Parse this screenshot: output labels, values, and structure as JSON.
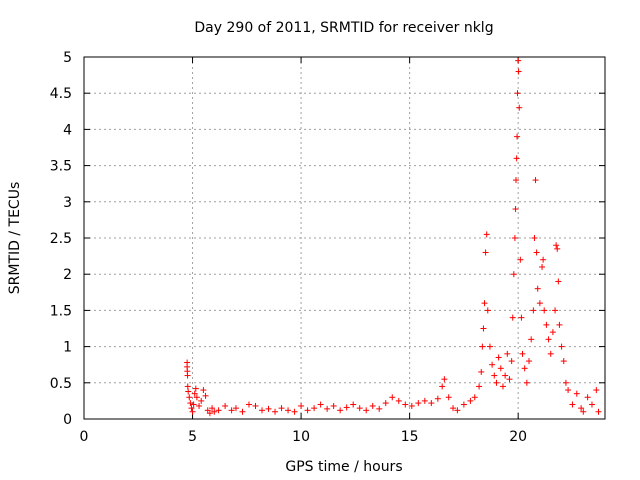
{
  "chart_data": {
    "type": "scatter",
    "title": "Day 290 of 2011, SRMTID for receiver nklg",
    "xlabel": "GPS time / hours",
    "ylabel": "SRMTID / TECUs",
    "xlim": [
      0,
      24
    ],
    "ylim": [
      0,
      5
    ],
    "x_ticks": [
      0,
      5,
      10,
      15,
      20
    ],
    "x_tick_labels": [
      "0",
      "5",
      "10",
      "15",
      "20"
    ],
    "y_ticks": [
      0,
      0.5,
      1,
      1.5,
      2,
      2.5,
      3,
      3.5,
      4,
      4.5,
      5
    ],
    "y_tick_labels": [
      "0",
      "0.5",
      "1",
      "1.5",
      "2",
      "2.5",
      "3",
      "3.5",
      "4",
      "4.5",
      "5"
    ],
    "grid": true,
    "marker": "+",
    "color": "#ff0000",
    "series": [
      {
        "name": "SRMTID",
        "points": [
          [
            4.75,
            0.78
          ],
          [
            4.75,
            0.72
          ],
          [
            4.76,
            0.66
          ],
          [
            4.77,
            0.6
          ],
          [
            4.78,
            0.45
          ],
          [
            4.8,
            0.38
          ],
          [
            4.85,
            0.3
          ],
          [
            4.9,
            0.22
          ],
          [
            4.95,
            0.15
          ],
          [
            5.0,
            0.1
          ],
          [
            5.05,
            0.2
          ],
          [
            5.1,
            0.35
          ],
          [
            5.15,
            0.42
          ],
          [
            5.2,
            0.3
          ],
          [
            5.3,
            0.18
          ],
          [
            5.4,
            0.25
          ],
          [
            5.5,
            0.4
          ],
          [
            5.6,
            0.32
          ],
          [
            5.7,
            0.12
          ],
          [
            5.8,
            0.08
          ],
          [
            5.9,
            0.15
          ],
          [
            6.0,
            0.1
          ],
          [
            6.2,
            0.12
          ],
          [
            6.5,
            0.18
          ],
          [
            6.8,
            0.12
          ],
          [
            7.0,
            0.15
          ],
          [
            7.3,
            0.1
          ],
          [
            7.6,
            0.2
          ],
          [
            7.9,
            0.18
          ],
          [
            8.2,
            0.12
          ],
          [
            8.5,
            0.14
          ],
          [
            8.8,
            0.1
          ],
          [
            9.1,
            0.15
          ],
          [
            9.4,
            0.12
          ],
          [
            9.7,
            0.1
          ],
          [
            10.0,
            0.18
          ],
          [
            10.3,
            0.12
          ],
          [
            10.6,
            0.15
          ],
          [
            10.9,
            0.2
          ],
          [
            11.2,
            0.14
          ],
          [
            11.5,
            0.18
          ],
          [
            11.8,
            0.12
          ],
          [
            12.1,
            0.16
          ],
          [
            12.4,
            0.2
          ],
          [
            12.7,
            0.15
          ],
          [
            13.0,
            0.12
          ],
          [
            13.3,
            0.18
          ],
          [
            13.6,
            0.14
          ],
          [
            13.9,
            0.22
          ],
          [
            14.2,
            0.3
          ],
          [
            14.5,
            0.25
          ],
          [
            14.8,
            0.2
          ],
          [
            15.1,
            0.18
          ],
          [
            15.4,
            0.22
          ],
          [
            15.7,
            0.25
          ],
          [
            16.0,
            0.22
          ],
          [
            16.3,
            0.28
          ],
          [
            16.5,
            0.45
          ],
          [
            16.6,
            0.55
          ],
          [
            16.8,
            0.3
          ],
          [
            17.0,
            0.15
          ],
          [
            17.2,
            0.12
          ],
          [
            17.5,
            0.2
          ],
          [
            17.8,
            0.25
          ],
          [
            18.0,
            0.3
          ],
          [
            18.2,
            0.45
          ],
          [
            18.3,
            0.65
          ],
          [
            18.35,
            1.0
          ],
          [
            18.4,
            1.25
          ],
          [
            18.45,
            1.6
          ],
          [
            18.5,
            2.3
          ],
          [
            18.55,
            2.55
          ],
          [
            18.6,
            1.5
          ],
          [
            18.7,
            1.0
          ],
          [
            18.8,
            0.75
          ],
          [
            18.9,
            0.6
          ],
          [
            19.0,
            0.5
          ],
          [
            19.1,
            0.85
          ],
          [
            19.2,
            0.7
          ],
          [
            19.3,
            0.45
          ],
          [
            19.4,
            0.6
          ],
          [
            19.5,
            0.9
          ],
          [
            19.6,
            0.55
          ],
          [
            19.7,
            0.8
          ],
          [
            19.75,
            1.4
          ],
          [
            19.8,
            2.0
          ],
          [
            19.85,
            2.5
          ],
          [
            19.88,
            2.9
          ],
          [
            19.9,
            3.3
          ],
          [
            19.93,
            3.6
          ],
          [
            19.95,
            3.9
          ],
          [
            19.97,
            4.5
          ],
          [
            20.0,
            4.95
          ],
          [
            20.02,
            4.8
          ],
          [
            20.05,
            4.3
          ],
          [
            20.1,
            2.2
          ],
          [
            20.15,
            1.4
          ],
          [
            20.2,
            0.9
          ],
          [
            20.3,
            0.7
          ],
          [
            20.4,
            0.5
          ],
          [
            20.5,
            0.8
          ],
          [
            20.6,
            1.1
          ],
          [
            20.7,
            1.5
          ],
          [
            20.75,
            2.5
          ],
          [
            20.8,
            3.3
          ],
          [
            20.85,
            2.3
          ],
          [
            20.9,
            1.8
          ],
          [
            21.0,
            1.6
          ],
          [
            21.1,
            2.1
          ],
          [
            21.15,
            2.2
          ],
          [
            21.2,
            1.5
          ],
          [
            21.3,
            1.3
          ],
          [
            21.4,
            1.1
          ],
          [
            21.5,
            0.9
          ],
          [
            21.6,
            1.2
          ],
          [
            21.7,
            1.5
          ],
          [
            21.75,
            2.4
          ],
          [
            21.8,
            2.35
          ],
          [
            21.85,
            1.9
          ],
          [
            21.9,
            1.3
          ],
          [
            22.0,
            1.0
          ],
          [
            22.1,
            0.8
          ],
          [
            22.2,
            0.5
          ],
          [
            22.3,
            0.4
          ],
          [
            22.5,
            0.2
          ],
          [
            22.7,
            0.35
          ],
          [
            22.9,
            0.15
          ],
          [
            23.0,
            0.1
          ],
          [
            23.2,
            0.3
          ],
          [
            23.4,
            0.2
          ],
          [
            23.6,
            0.4
          ],
          [
            23.7,
            0.1
          ]
        ]
      }
    ]
  }
}
